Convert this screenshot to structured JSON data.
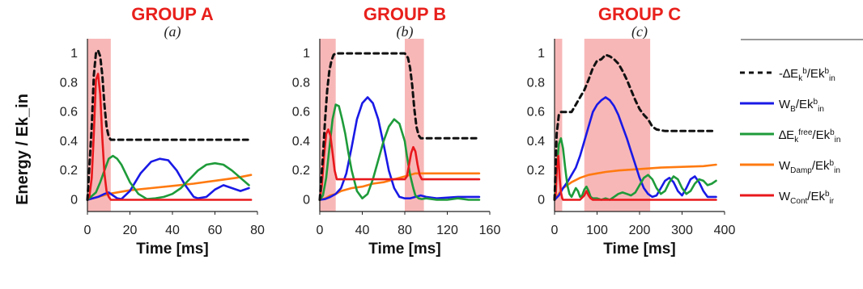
{
  "chart_data": [
    {
      "type": "line",
      "group_title": "GROUP A",
      "panel_label": "(a)",
      "xlabel": "Time [ms]",
      "ylabel": "Energy / Ek_in",
      "xlim": [
        0,
        80
      ],
      "ylim": [
        -0.08,
        1.1
      ],
      "xticks": [
        "0",
        "20",
        "40",
        "60",
        "80"
      ],
      "yticks": [
        "1",
        "0.8",
        "0.6",
        "0.4",
        "0.2",
        "0"
      ],
      "highlight_ranges": [
        [
          0,
          11
        ]
      ],
      "series": [
        {
          "key": "dEkb",
          "x": [
            0,
            2,
            3,
            4,
            5,
            6,
            7,
            8,
            9,
            10,
            11,
            12,
            20,
            40,
            60,
            77
          ],
          "y": [
            0,
            0.5,
            0.85,
            1.0,
            1.02,
            0.98,
            0.85,
            0.65,
            0.5,
            0.43,
            0.41,
            0.41,
            0.41,
            0.41,
            0.41,
            0.41
          ]
        },
        {
          "key": "WB",
          "x": [
            0,
            5,
            8,
            10,
            12,
            14,
            16,
            20,
            25,
            30,
            34,
            38,
            42,
            46,
            50,
            52,
            56,
            60,
            64,
            68,
            72,
            76
          ],
          "y": [
            0,
            0.02,
            0.04,
            0.05,
            0.03,
            0.01,
            0.005,
            0.06,
            0.18,
            0.26,
            0.28,
            0.27,
            0.2,
            0.1,
            0.02,
            0.01,
            0.02,
            0.07,
            0.1,
            0.08,
            0.06,
            0.08
          ]
        },
        {
          "key": "dEkfree",
          "x": [
            0,
            4,
            6,
            8,
            10,
            12,
            14,
            16,
            20,
            24,
            28,
            32,
            36,
            40,
            44,
            48,
            52,
            56,
            60,
            64,
            68,
            72,
            76
          ],
          "y": [
            0,
            0.05,
            0.12,
            0.2,
            0.28,
            0.3,
            0.28,
            0.24,
            0.12,
            0.04,
            0.005,
            0.01,
            0.02,
            0.04,
            0.08,
            0.14,
            0.2,
            0.24,
            0.25,
            0.24,
            0.2,
            0.15,
            0.1
          ]
        },
        {
          "key": "WDamp",
          "x": [
            0,
            5,
            10,
            20,
            30,
            40,
            50,
            60,
            70,
            77
          ],
          "y": [
            0,
            0.02,
            0.04,
            0.065,
            0.08,
            0.095,
            0.11,
            0.13,
            0.15,
            0.17
          ]
        },
        {
          "key": "WCont",
          "x": [
            0,
            1,
            2,
            3,
            4,
            5,
            6,
            7,
            8,
            9,
            10,
            11,
            20,
            40,
            60,
            77
          ],
          "y": [
            0,
            0.03,
            0.15,
            0.45,
            0.82,
            0.86,
            0.72,
            0.42,
            0.18,
            0.06,
            0.02,
            0,
            0,
            0,
            0,
            0
          ]
        }
      ]
    },
    {
      "type": "line",
      "group_title": "GROUP B",
      "panel_label": "(b)",
      "xlabel": "Time [ms]",
      "ylabel": "",
      "xlim": [
        0,
        160
      ],
      "ylim": [
        -0.08,
        1.1
      ],
      "xticks": [
        "0",
        "40",
        "80",
        "120",
        "160"
      ],
      "yticks": [
        "1",
        "0.8",
        "0.6",
        "0.4",
        "0.2",
        "0"
      ],
      "highlight_ranges": [
        [
          0,
          15
        ],
        [
          80,
          98
        ]
      ],
      "series": [
        {
          "key": "dEkb",
          "x": [
            0,
            3,
            5,
            7,
            9,
            11,
            13,
            15,
            18,
            22,
            40,
            60,
            80,
            83,
            85,
            87,
            89,
            91,
            93,
            95,
            100,
            120,
            150
          ],
          "y": [
            0,
            0.3,
            0.55,
            0.75,
            0.88,
            0.95,
            0.99,
            1.0,
            1.0,
            1.0,
            1.0,
            1.0,
            1.0,
            0.97,
            0.9,
            0.78,
            0.62,
            0.5,
            0.44,
            0.42,
            0.42,
            0.42,
            0.42
          ]
        },
        {
          "key": "WB",
          "x": [
            0,
            5,
            10,
            15,
            20,
            25,
            30,
            35,
            40,
            45,
            50,
            55,
            60,
            65,
            70,
            75,
            80,
            85,
            90,
            95,
            100,
            110,
            130,
            150
          ],
          "y": [
            0,
            0.005,
            0.02,
            0.04,
            0.08,
            0.18,
            0.36,
            0.55,
            0.66,
            0.7,
            0.66,
            0.55,
            0.38,
            0.2,
            0.08,
            0.02,
            0.01,
            0.01,
            0.02,
            0.03,
            0.02,
            0.01,
            0.02,
            0.02
          ]
        },
        {
          "key": "dEkfree",
          "x": [
            0,
            3,
            6,
            9,
            12,
            15,
            18,
            21,
            24,
            27,
            30,
            35,
            40,
            45,
            50,
            55,
            60,
            65,
            70,
            75,
            80,
            82,
            85,
            88,
            90,
            93,
            96,
            100,
            110,
            120,
            130,
            140,
            150
          ],
          "y": [
            0,
            0.03,
            0.15,
            0.35,
            0.55,
            0.65,
            0.64,
            0.55,
            0.45,
            0.32,
            0.2,
            0.06,
            0.01,
            0.04,
            0.14,
            0.27,
            0.4,
            0.5,
            0.55,
            0.52,
            0.4,
            0.3,
            0.17,
            0.08,
            0.03,
            0.01,
            0.005,
            0.01,
            0.0,
            0.0,
            0.01,
            0.0,
            0.0
          ]
        },
        {
          "key": "WDamp",
          "x": [
            0,
            5,
            10,
            15,
            20,
            30,
            40,
            50,
            60,
            70,
            80,
            90,
            100,
            120,
            150
          ],
          "y": [
            0,
            0.01,
            0.03,
            0.04,
            0.06,
            0.08,
            0.09,
            0.11,
            0.12,
            0.14,
            0.16,
            0.18,
            0.18,
            0.18,
            0.18
          ]
        },
        {
          "key": "WCont",
          "x": [
            0,
            2,
            4,
            6,
            8,
            10,
            12,
            14,
            16,
            20,
            40,
            60,
            80,
            82,
            84,
            86,
            88,
            90,
            92,
            94,
            96,
            100,
            120,
            150
          ],
          "y": [
            0,
            0.1,
            0.3,
            0.45,
            0.48,
            0.44,
            0.32,
            0.2,
            0.14,
            0.14,
            0.14,
            0.14,
            0.14,
            0.16,
            0.24,
            0.32,
            0.36,
            0.33,
            0.24,
            0.17,
            0.14,
            0.14,
            0.14,
            0.14
          ]
        }
      ]
    },
    {
      "type": "line",
      "group_title": "GROUP C",
      "panel_label": "(c)",
      "xlabel": "Time [ms]",
      "ylabel": "",
      "xlim": [
        0,
        400
      ],
      "ylim": [
        -0.08,
        1.1
      ],
      "xticks": [
        "0",
        "100",
        "200",
        "300",
        "400"
      ],
      "yticks": [
        "1",
        "0.8",
        "0.6",
        "0.4",
        "0.2",
        "0"
      ],
      "highlight_ranges": [
        [
          0,
          18
        ],
        [
          70,
          225
        ]
      ],
      "series": [
        {
          "key": "dEkb",
          "x": [
            0,
            5,
            10,
            15,
            20,
            30,
            40,
            50,
            60,
            70,
            80,
            90,
            100,
            110,
            120,
            130,
            140,
            150,
            160,
            170,
            180,
            190,
            200,
            210,
            220,
            230,
            240,
            260,
            300,
            340,
            380
          ],
          "y": [
            0,
            0.45,
            0.58,
            0.6,
            0.6,
            0.6,
            0.6,
            0.65,
            0.7,
            0.75,
            0.82,
            0.9,
            0.95,
            0.96,
            0.99,
            0.98,
            0.96,
            0.93,
            0.88,
            0.82,
            0.75,
            0.68,
            0.62,
            0.58,
            0.55,
            0.5,
            0.48,
            0.47,
            0.47,
            0.47,
            0.47
          ]
        },
        {
          "key": "WB",
          "x": [
            0,
            10,
            20,
            30,
            40,
            50,
            60,
            70,
            80,
            90,
            100,
            110,
            120,
            130,
            140,
            150,
            160,
            170,
            180,
            190,
            200,
            210,
            220,
            230,
            240,
            250,
            260,
            270,
            280,
            290,
            300,
            310,
            320,
            330,
            340,
            350,
            360,
            370,
            380
          ],
          "y": [
            0,
            0.03,
            0.08,
            0.12,
            0.17,
            0.22,
            0.3,
            0.4,
            0.5,
            0.6,
            0.65,
            0.68,
            0.7,
            0.68,
            0.64,
            0.58,
            0.5,
            0.42,
            0.33,
            0.24,
            0.15,
            0.08,
            0.04,
            0.02,
            0.03,
            0.08,
            0.13,
            0.15,
            0.12,
            0.06,
            0.03,
            0.08,
            0.14,
            0.16,
            0.12,
            0.06,
            0.02,
            0.02,
            0.02
          ]
        },
        {
          "key": "dEkfree",
          "x": [
            0,
            5,
            10,
            15,
            20,
            25,
            30,
            35,
            40,
            45,
            50,
            55,
            60,
            65,
            70,
            75,
            80,
            85,
            90,
            95,
            100,
            110,
            120,
            130,
            140,
            150,
            160,
            170,
            180,
            190,
            200,
            210,
            220,
            230,
            240,
            250,
            260,
            270,
            280,
            290,
            300,
            310,
            320,
            330,
            340,
            350,
            360,
            370,
            380
          ],
          "y": [
            0,
            0.2,
            0.38,
            0.42,
            0.35,
            0.22,
            0.1,
            0.04,
            0.02,
            0.05,
            0.08,
            0.06,
            0.02,
            0.03,
            0.07,
            0.09,
            0.06,
            0.02,
            0.01,
            0.01,
            0.01,
            0.0,
            0.01,
            0.0,
            0.02,
            0.04,
            0.05,
            0.04,
            0.03,
            0.05,
            0.1,
            0.15,
            0.17,
            0.14,
            0.08,
            0.04,
            0.06,
            0.12,
            0.16,
            0.14,
            0.08,
            0.04,
            0.06,
            0.11,
            0.14,
            0.13,
            0.1,
            0.11,
            0.13
          ]
        },
        {
          "key": "WDamp",
          "x": [
            0,
            10,
            20,
            40,
            60,
            80,
            100,
            120,
            150,
            200,
            250,
            300,
            350,
            380
          ],
          "y": [
            0,
            0.04,
            0.08,
            0.12,
            0.15,
            0.17,
            0.18,
            0.19,
            0.2,
            0.21,
            0.22,
            0.225,
            0.23,
            0.24
          ]
        },
        {
          "key": "WCont",
          "x": [
            0,
            3,
            6,
            9,
            12,
            15,
            18,
            20,
            40,
            60,
            70,
            75,
            80,
            85,
            90,
            100,
            150,
            200,
            250,
            300,
            380
          ],
          "y": [
            0,
            0.05,
            0.25,
            0.3,
            0.15,
            0.05,
            0.01,
            0,
            0,
            0,
            0.03,
            0.06,
            0.03,
            0.01,
            0,
            0,
            0,
            0,
            0,
            0,
            0
          ]
        }
      ]
    }
  ],
  "legend": [
    {
      "key": "dEkb",
      "color": "#111111",
      "dash": true,
      "label": {
        "a": "-∆E",
        "b": "k",
        "bs": "b",
        "c": "/E",
        "d": "k",
        "ds": "b",
        "e": "in"
      }
    },
    {
      "key": "WB",
      "color": "#1919e6",
      "dash": false,
      "label": {
        "a": "W",
        "b": "B",
        "c": "/E",
        "d": "k",
        "ds": "b",
        "e": "in"
      }
    },
    {
      "key": "dEkfree",
      "color": "#1e9b3a",
      "dash": false,
      "label": {
        "a": "∆E",
        "b": "k",
        "bs": "free",
        "c": "/E",
        "d": "k",
        "ds": "b",
        "e": "in"
      }
    },
    {
      "key": "WDamp",
      "color": "#ff7a10",
      "dash": false,
      "label": {
        "a": "W",
        "b": "Damp",
        "c": "/E",
        "d": "k",
        "ds": "b",
        "e": "in"
      }
    },
    {
      "key": "WCont",
      "color": "#e8181c",
      "dash": false,
      "label": {
        "a": "W",
        "b": "Cont",
        "c": "/E",
        "d": "k",
        "ds": "b",
        "e": "ir"
      }
    }
  ],
  "colors": {
    "highlight": "#f8b7b7",
    "title": "#e8201c"
  }
}
